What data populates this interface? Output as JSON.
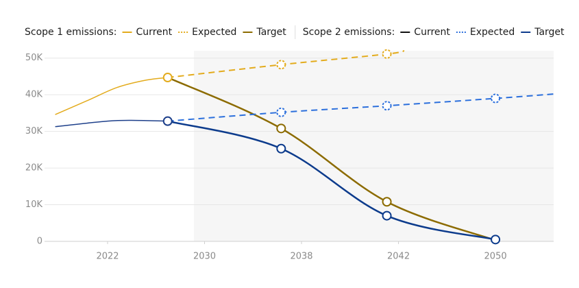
{
  "chart_data": {
    "type": "line",
    "series_groups": [
      {
        "name": "Scope 1 emissions:",
        "series": [
          {
            "name": "Current",
            "color": "#e3ab1c",
            "dashed": false,
            "x": [
              -0.54,
              -0.2,
              0.1,
              0.4,
              0.62
            ],
            "values": [
              34600,
              38500,
              42000,
              44000,
              44700
            ],
            "markers": [
              false,
              false,
              false,
              false,
              true
            ]
          },
          {
            "name": "Expected",
            "color": "#e3ab1c",
            "dashed": true,
            "x": [
              0.62,
              1.79,
              2.88,
              3.06
            ],
            "values": [
              44700,
              48200,
              51100,
              52000
            ],
            "markers": [
              false,
              true,
              true,
              false
            ]
          },
          {
            "name": "Target",
            "color": "#8c6b00",
            "dashed": false,
            "x": [
              0.62,
              1.79,
              2.88,
              4
            ],
            "values": [
              44700,
              30800,
              10800,
              300
            ],
            "markers": [
              false,
              true,
              true,
              false
            ]
          }
        ]
      },
      {
        "name": "Scope 2 emissions:",
        "series": [
          {
            "name": "Current",
            "color": "#1d3f8a",
            "dashed": false,
            "x": [
              -0.54,
              0,
              0.3,
              0.62
            ],
            "values": [
              31300,
              32800,
              33000,
              32800
            ],
            "markers": [
              false,
              false,
              false,
              true
            ]
          },
          {
            "name": "Expected",
            "color": "#2b6fdc",
            "dashed": true,
            "x": [
              0.62,
              1.79,
              2.88,
              4,
              4.6
            ],
            "values": [
              32800,
              35200,
              37000,
              39000,
              40200
            ],
            "markers": [
              false,
              true,
              true,
              true,
              false
            ]
          },
          {
            "name": "Target",
            "color": "#0c3b8c",
            "dashed": false,
            "x": [
              0.62,
              1.79,
              2.88,
              4
            ],
            "values": [
              32800,
              25300,
              7000,
              500
            ],
            "markers": [
              false,
              true,
              true,
              true
            ]
          }
        ]
      }
    ],
    "xlim": [
      -0.65,
      4.6
    ],
    "xticks": [
      {
        "value": 0,
        "label": "2022"
      },
      {
        "value": 1,
        "label": "2030"
      },
      {
        "value": 2,
        "label": "2038"
      },
      {
        "value": 3,
        "label": "2042"
      },
      {
        "value": 4,
        "label": "2050"
      }
    ],
    "ylim": [
      0,
      52000
    ],
    "yticks": [
      0,
      {
        "value": 10000,
        "label": "10K"
      },
      {
        "value": 20000,
        "label": "20K"
      },
      {
        "value": 30000,
        "label": "30K"
      },
      {
        "value": 40000,
        "label": "40K"
      },
      {
        "value": 50000,
        "label": "50K"
      }
    ],
    "grid": true
  }
}
